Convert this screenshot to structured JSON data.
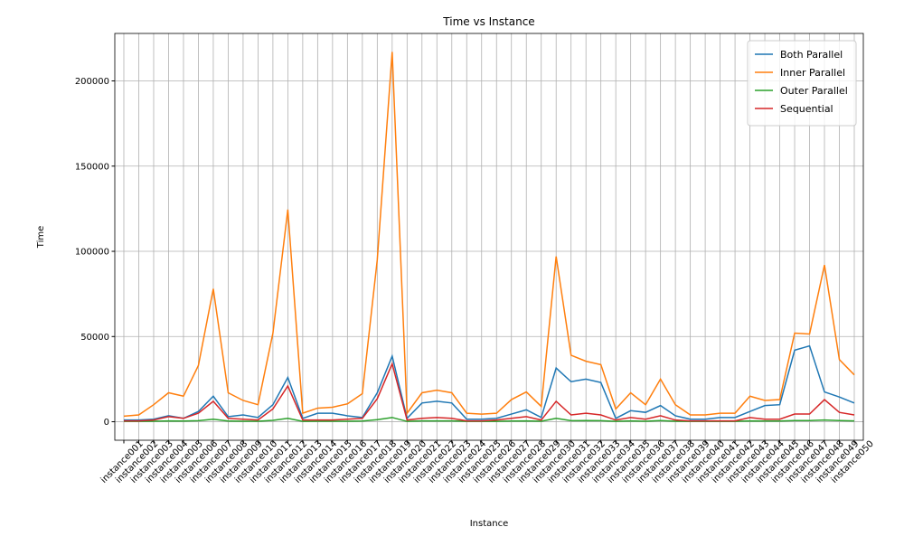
{
  "chart_data": {
    "type": "line",
    "title": "Time vs Instance",
    "xlabel": "Instance",
    "ylabel": "Time",
    "categories": [
      "instance001",
      "instance002",
      "instance003",
      "instance004",
      "instance005",
      "instance006",
      "instance007",
      "instance008",
      "instance009",
      "instance010",
      "instance011",
      "instance012",
      "instance013",
      "instance014",
      "instance015",
      "instance016",
      "instance017",
      "instance018",
      "instance019",
      "instance020",
      "instance021",
      "instance022",
      "instance023",
      "instance024",
      "instance025",
      "instance026",
      "instance027",
      "instance028",
      "instance029",
      "instance030",
      "instance031",
      "instance032",
      "instance033",
      "instance034",
      "instance035",
      "instance036",
      "instance037",
      "instance038",
      "instance039",
      "instance040",
      "instance041",
      "instance042",
      "instance043",
      "instance044",
      "instance045",
      "instance046",
      "instance047",
      "instance048",
      "instance049",
      "instance050"
    ],
    "series": [
      {
        "name": "Both Parallel",
        "color": "#1f77b4",
        "values": [
          1000,
          1000,
          1500,
          3500,
          2000,
          6000,
          15000,
          3000,
          4000,
          2500,
          10000,
          26000,
          2000,
          5000,
          5000,
          3500,
          2500,
          17000,
          38500,
          2000,
          11000,
          12000,
          11000,
          1500,
          1500,
          2000,
          4500,
          7000,
          2500,
          31500,
          23500,
          25000,
          23000,
          2000,
          6500,
          5500,
          9500,
          3500,
          1500,
          1500,
          2500,
          2500,
          6000,
          9500,
          10000,
          42000,
          44500,
          17500,
          14500,
          11000
        ]
      },
      {
        "name": "Inner Parallel",
        "color": "#ff7f0e",
        "values": [
          3300,
          4000,
          10000,
          17000,
          15000,
          33000,
          78000,
          17000,
          12500,
          10000,
          52000,
          124500,
          5000,
          8000,
          8500,
          10500,
          16500,
          95000,
          217000,
          5000,
          17000,
          18500,
          17000,
          5000,
          4500,
          5000,
          13000,
          17500,
          9000,
          97000,
          39000,
          35500,
          33500,
          7500,
          17000,
          10000,
          25000,
          10000,
          4000,
          4000,
          5000,
          5000,
          15000,
          12500,
          13000,
          52000,
          51500,
          92000,
          36500,
          27500
        ]
      },
      {
        "name": "Outer Parallel",
        "color": "#2ca02c",
        "values": [
          200,
          200,
          300,
          500,
          400,
          600,
          1500,
          400,
          300,
          300,
          800,
          2000,
          200,
          300,
          300,
          300,
          400,
          1200,
          2500,
          200,
          500,
          500,
          500,
          200,
          200,
          200,
          400,
          500,
          300,
          2000,
          600,
          700,
          600,
          200,
          500,
          300,
          700,
          300,
          200,
          200,
          200,
          200,
          500,
          400,
          400,
          700,
          700,
          1000,
          700,
          500
        ]
      },
      {
        "name": "Sequential",
        "color": "#d62728",
        "values": [
          500,
          500,
          1000,
          3000,
          2000,
          5000,
          12000,
          2000,
          1500,
          1000,
          7500,
          21000,
          1000,
          1000,
          1000,
          1500,
          2000,
          13500,
          34000,
          1000,
          2000,
          2500,
          2000,
          500,
          500,
          1000,
          2000,
          3000,
          1000,
          12000,
          4000,
          5000,
          4000,
          1000,
          2500,
          1500,
          3500,
          1000,
          500,
          500,
          500,
          500,
          2500,
          1500,
          1500,
          4500,
          4500,
          13000,
          5500,
          4000
        ]
      }
    ],
    "ylim": [
      -10850,
      227850
    ],
    "yticks": [
      0,
      50000,
      100000,
      150000,
      200000
    ],
    "grid": true,
    "legend": "upper right"
  }
}
